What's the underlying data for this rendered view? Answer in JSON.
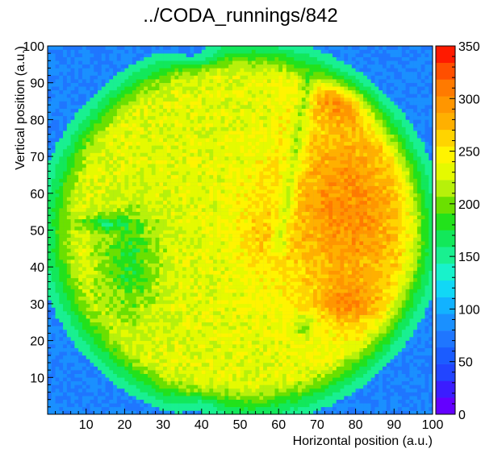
{
  "chart_data": {
    "type": "heatmap",
    "title": "../CODA_runnings/842",
    "xlabel": "Horizontal position (a.u.)",
    "ylabel": "Vertical position (a.u.)",
    "xlim": [
      0,
      100
    ],
    "ylim": [
      0,
      100
    ],
    "x_ticks": [
      "10",
      "20",
      "30",
      "40",
      "50",
      "60",
      "70",
      "80",
      "90",
      "100"
    ],
    "y_ticks": [
      "10",
      "20",
      "30",
      "40",
      "50",
      "60",
      "70",
      "80",
      "90",
      "100"
    ],
    "colorbar": {
      "range": [
        0,
        350
      ],
      "ticks": [
        "0",
        "50",
        "100",
        "150",
        "200",
        "250",
        "300",
        "350"
      ]
    },
    "bins": {
      "nx": 100,
      "ny": 100
    },
    "features": {
      "disk": {
        "center": [
          50,
          50
        ],
        "radius": 47,
        "rim_width": 6,
        "edge_value": 150,
        "background_value": 80,
        "top_notch": {
          "x": 38,
          "y": 98,
          "depth": 4
        },
        "bottom_notch": {
          "x": 40,
          "y": 2,
          "depth": 3
        }
      },
      "base_value": 230,
      "left_blob": {
        "center": [
          21,
          41
        ],
        "sigma": [
          8,
          14
        ],
        "delta": -50
      },
      "left_streak": {
        "center": [
          14,
          52
        ],
        "sigma": [
          7,
          2
        ],
        "delta": -45
      },
      "right_region": {
        "center": [
          78,
          55
        ],
        "sigma": [
          17,
          28
        ],
        "delta": 70
      },
      "top_hot": {
        "center": [
          78,
          86
        ],
        "sigma": [
          9,
          6
        ],
        "delta": 60
      },
      "bottom_hot": {
        "center": [
          78,
          30
        ],
        "sigma": [
          8,
          5
        ],
        "delta": 40
      },
      "central_band": {
        "center": [
          55,
          50
        ],
        "sigma": [
          8,
          14
        ],
        "delta": 20
      },
      "channel": {
        "x_start": 60,
        "x_end": 68,
        "y_start": 45,
        "y_end": 92,
        "width": 2,
        "delta": -40
      },
      "notch_spot": {
        "center": [
          67,
          24
        ],
        "sigma": [
          3,
          3
        ],
        "delta": -40
      },
      "noise_amplitude": 30
    }
  }
}
